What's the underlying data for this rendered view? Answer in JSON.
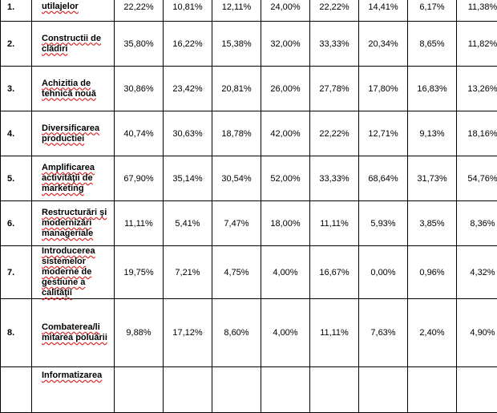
{
  "rows": [
    {
      "num": "1.",
      "name": "utilajelor",
      "values": [
        "22,22%",
        "10,81%",
        "12,11%",
        "24,00%",
        "22,22%",
        "14,41%",
        "6,17%",
        "11,38%"
      ]
    },
    {
      "num": "2.",
      "name": "Constructii de clădiri",
      "values": [
        "35,80%",
        "16,22%",
        "15,38%",
        "32,00%",
        "33,33%",
        "20,34%",
        "8,65%",
        "11,82%"
      ]
    },
    {
      "num": "3.",
      "name": "Achizitia de tehnică nouă",
      "values": [
        "30,86%",
        "23,42%",
        "20,81%",
        "26,00%",
        "27,78%",
        "17,80%",
        "16,83%",
        "13,26%"
      ]
    },
    {
      "num": "4.",
      "name": "Diversificarea productiei",
      "values": [
        "40,74%",
        "30,63%",
        "18,78%",
        "42,00%",
        "22,22%",
        "12,71%",
        "9,13%",
        "18,16%"
      ]
    },
    {
      "num": "5.",
      "name": "Amplificarea activităţii de marketing",
      "values": [
        "67,90%",
        "35,14%",
        "30,54%",
        "52,00%",
        "33,33%",
        "68,64%",
        "31,73%",
        "54,76%"
      ]
    },
    {
      "num": "6.",
      "name": "Restructurări şi modernizări manageriale",
      "values": [
        "11,11%",
        "5,41%",
        "7,47%",
        "18,00%",
        "11,11%",
        "5,93%",
        "3,85%",
        "8,36%"
      ]
    },
    {
      "num": "7.",
      "name": "Introducerea sistemelor moderne de gestiune a calităţii",
      "values": [
        "19,75%",
        "7,21%",
        "4,75%",
        "4,00%",
        "16,67%",
        "0,00%",
        "0,96%",
        "4,32%"
      ]
    },
    {
      "num": "8.",
      "name": "Combaterea/li mitarea poluării",
      "values": [
        "9,88%",
        "17,12%",
        "8,60%",
        "4,00%",
        "11,11%",
        "7,63%",
        "2,40%",
        "4,90%"
      ]
    },
    {
      "num": "",
      "name": "Informatizarea",
      "values": [
        "",
        "",
        "",
        "",
        "",
        "",
        "",
        ""
      ]
    }
  ]
}
